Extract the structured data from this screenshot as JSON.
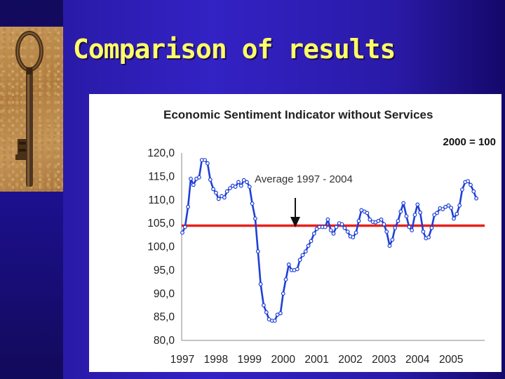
{
  "slide": {
    "title": "Comparison of results"
  },
  "colors": {
    "background": "#2a1aa8",
    "title": "#ffff66",
    "series": "#1f3fd6",
    "average_line": "#e8201a"
  },
  "chart_data": {
    "type": "line",
    "title": "Economic Sentiment Indicator without Services",
    "subtitle": "2000 = 100",
    "xlabel": "",
    "ylabel": "",
    "ylim": [
      80,
      120
    ],
    "yticks": [
      "120,0",
      "115,0",
      "110,0",
      "105,0",
      "100,0",
      "95,0",
      "90,0",
      "85,0",
      "80,0"
    ],
    "xticks": [
      "1997",
      "1998",
      "1999",
      "2000",
      "2001",
      "2002",
      "2003",
      "2004",
      "2005"
    ],
    "grid": false,
    "annotation": "Average 1997 - 2004",
    "average_value": 104.5,
    "series": [
      {
        "x": [
          1997.0,
          1997.08,
          1997.17,
          1997.25,
          1997.33,
          1997.42,
          1997.5,
          1997.58,
          1997.67,
          1997.75,
          1997.83,
          1997.92,
          1998.0,
          1998.08,
          1998.17,
          1998.25,
          1998.33,
          1998.42,
          1998.5,
          1998.58,
          1998.67,
          1998.75,
          1998.83,
          1998.92,
          1999.0,
          1999.08,
          1999.17,
          1999.25,
          1999.33,
          1999.42,
          1999.5,
          1999.58,
          1999.67,
          1999.75,
          1999.83,
          1999.92,
          2000.0,
          2000.08,
          2000.17,
          2000.25,
          2000.33,
          2000.42,
          2000.5,
          2000.58,
          2000.67,
          2000.75,
          2000.83,
          2000.92,
          2001.0,
          2001.08,
          2001.17,
          2001.25,
          2001.33,
          2001.42,
          2001.5,
          2001.58,
          2001.67,
          2001.75,
          2001.83,
          2001.92,
          2002.0,
          2002.08,
          2002.17,
          2002.25,
          2002.33,
          2002.42,
          2002.5,
          2002.58,
          2002.67,
          2002.75,
          2002.83,
          2002.92,
          2003.0,
          2003.08,
          2003.17,
          2003.25,
          2003.33,
          2003.42,
          2003.5,
          2003.58,
          2003.67,
          2003.75,
          2003.83,
          2003.92,
          2004.0,
          2004.08,
          2004.17,
          2004.25,
          2004.33,
          2004.42,
          2004.5,
          2004.58,
          2004.67,
          2004.75,
          2004.83,
          2004.92,
          2005.0,
          2005.08,
          2005.17,
          2005.25,
          2005.33,
          2005.42,
          2005.5,
          2005.58,
          2005.67,
          2005.75
        ],
        "values": [
          103.0,
          104.2,
          108.5,
          114.5,
          113.2,
          114.5,
          114.8,
          118.5,
          118.5,
          117.8,
          114.3,
          112.3,
          111.5,
          110.2,
          110.8,
          110.5,
          111.8,
          112.5,
          113.0,
          112.8,
          113.8,
          113.0,
          114.2,
          113.8,
          112.8,
          109.2,
          106.0,
          99.0,
          92.0,
          87.5,
          86.0,
          84.5,
          84.2,
          84.2,
          85.5,
          85.8,
          90.0,
          93.0,
          96.2,
          95.0,
          95.0,
          95.2,
          97.2,
          98.2,
          99.0,
          100.2,
          101.2,
          102.8,
          103.8,
          104.2,
          104.2,
          104.2,
          105.8,
          103.5,
          102.8,
          104.2,
          105.0,
          104.8,
          104.0,
          103.2,
          102.2,
          102.0,
          103.0,
          105.5,
          107.8,
          107.5,
          107.2,
          105.8,
          105.3,
          105.2,
          105.5,
          105.8,
          104.8,
          103.2,
          100.2,
          101.5,
          104.0,
          105.5,
          107.5,
          109.3,
          106.5,
          104.2,
          103.5,
          106.8,
          109.0,
          107.3,
          103.2,
          101.8,
          102.0,
          104.0,
          106.8,
          107.2,
          108.2,
          108.0,
          108.5,
          108.8,
          108.3,
          106.0,
          107.0,
          108.8,
          112.2,
          113.8,
          114.0,
          113.2,
          111.8,
          110.3
        ]
      }
    ]
  }
}
